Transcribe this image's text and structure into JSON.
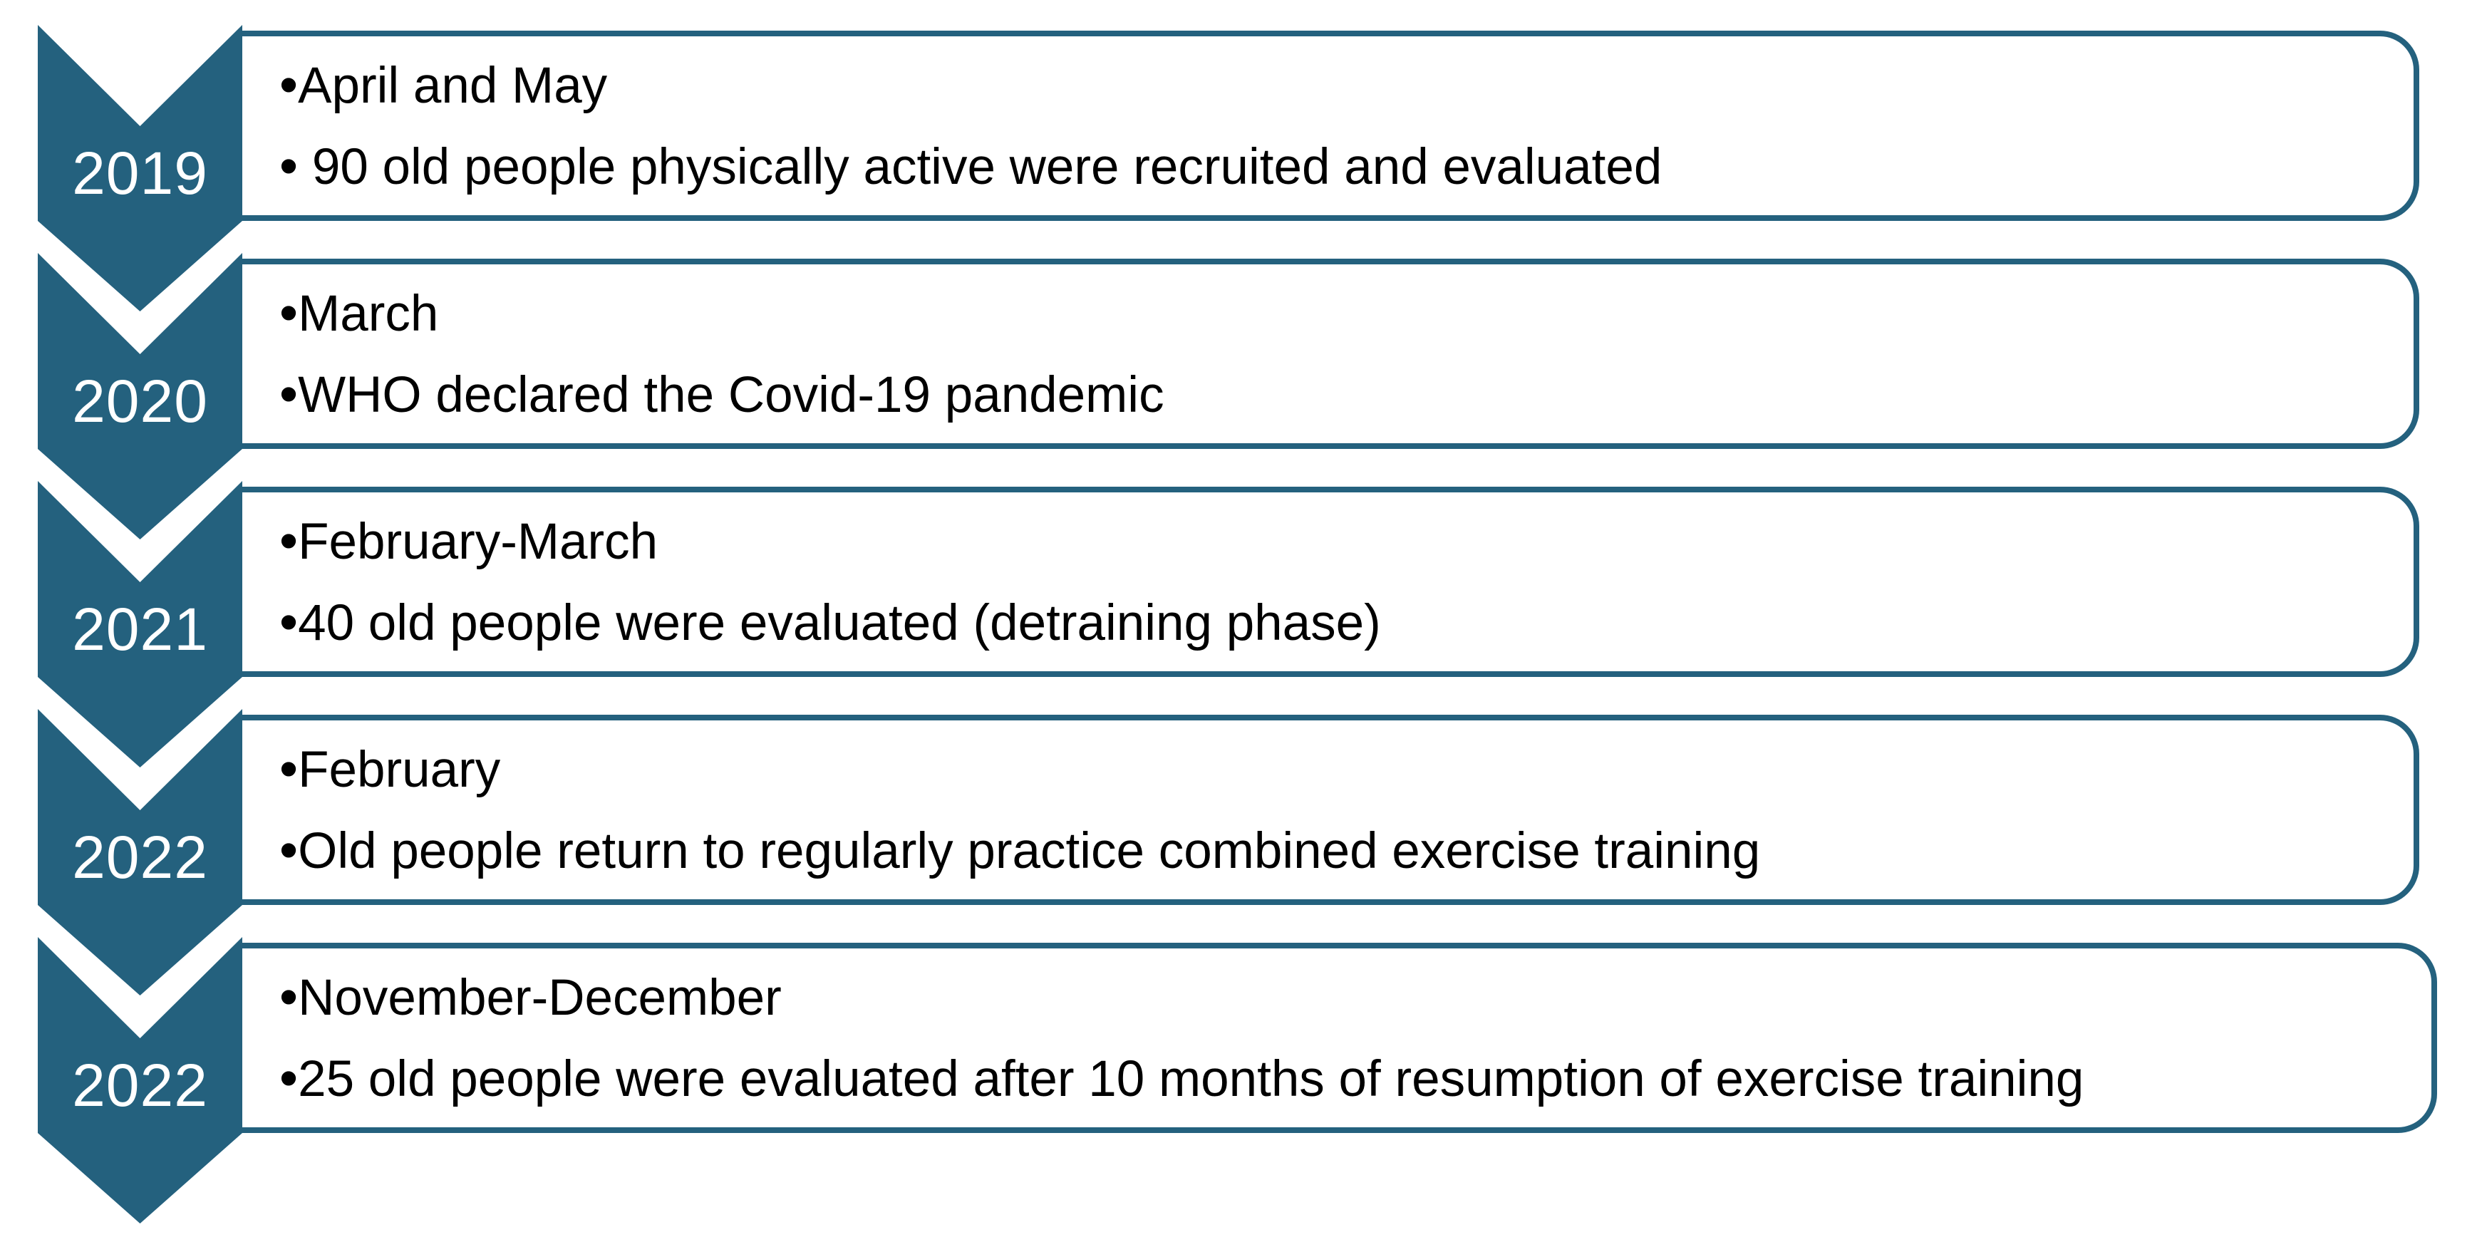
{
  "bullet_char": "•",
  "colors": {
    "teal": "#24617E",
    "box_background": "#FFFFFF",
    "body_text": "#000000",
    "year_text": "#FFFFFF",
    "page_background": "#FFFFFF"
  },
  "timeline": {
    "rows": [
      {
        "year": "2019",
        "lines": [
          "April and May",
          " 90 old people physically active were recruited and evaluated"
        ]
      },
      {
        "year": "2020",
        "lines": [
          "March",
          "WHO declared the Covid-19 pandemic"
        ]
      },
      {
        "year": "2021",
        "lines": [
          "February-March",
          "40 old people were evaluated (detraining phase)"
        ]
      },
      {
        "year": "2022",
        "lines": [
          "February",
          "Old people return to regularly practice combined exercise training"
        ]
      },
      {
        "year": "2022",
        "lines": [
          "November-December",
          "25 old people were evaluated after 10 months of resumption of exercise training"
        ]
      }
    ]
  }
}
